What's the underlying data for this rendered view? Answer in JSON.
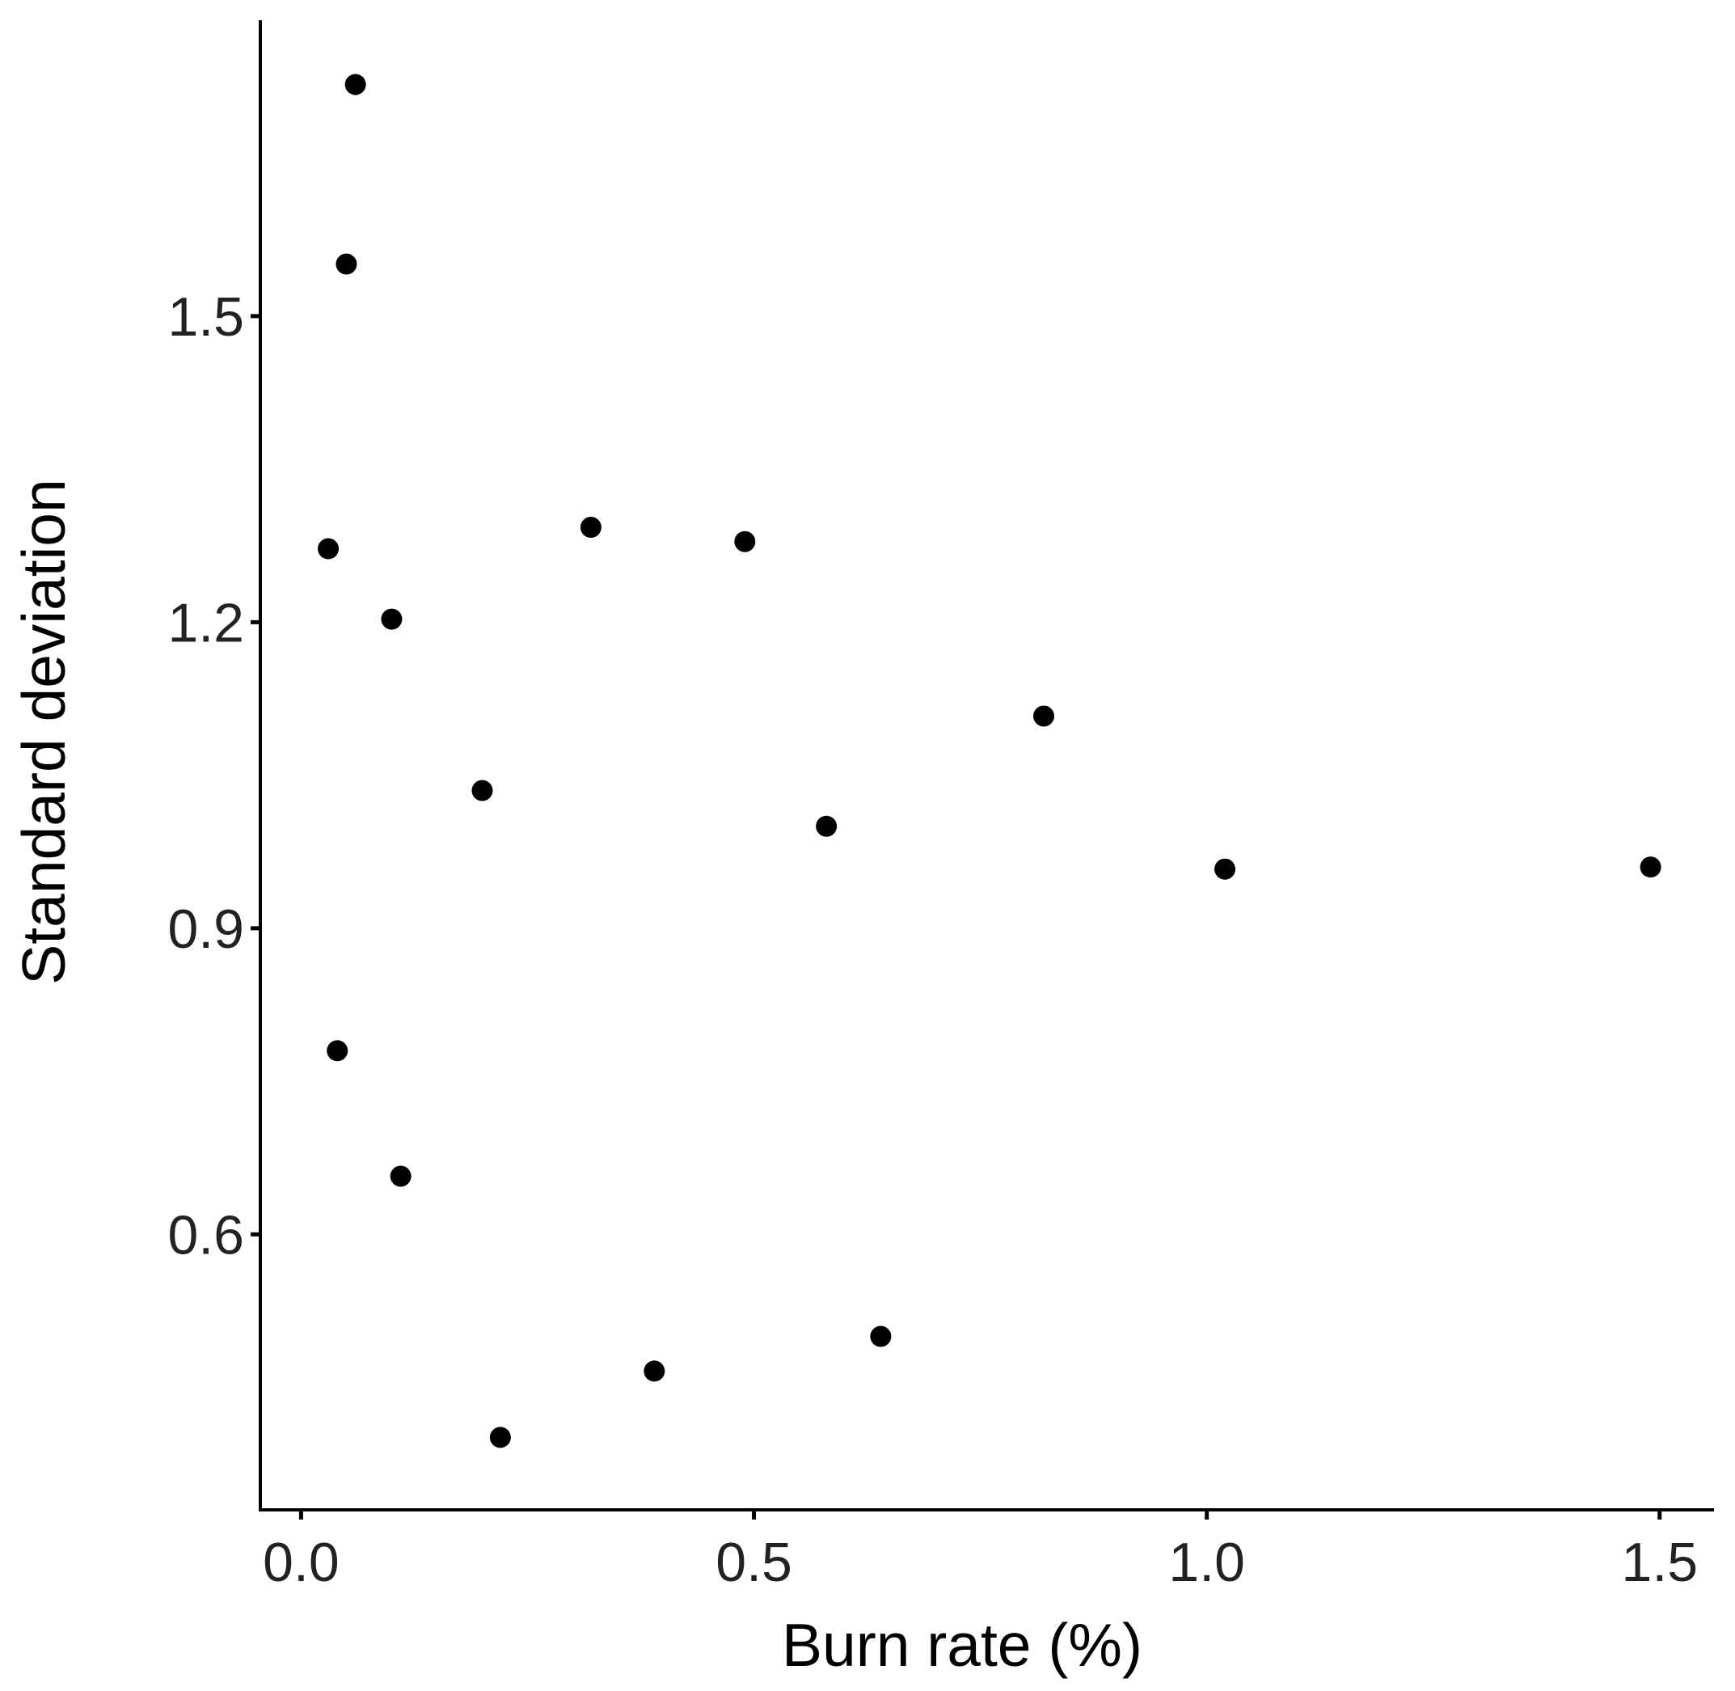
{
  "chart_data": {
    "type": "scatter",
    "xlabel": "Burn rate (%)",
    "ylabel": "Standard deviation",
    "xlim": [
      -0.045,
      1.56
    ],
    "ylim": [
      0.33,
      1.79
    ],
    "xticks": [
      {
        "value": 0.0,
        "label": "0.0"
      },
      {
        "value": 0.5,
        "label": "0.5"
      },
      {
        "value": 1.0,
        "label": "1.0"
      },
      {
        "value": 1.5,
        "label": "1.5"
      }
    ],
    "yticks": [
      {
        "value": 0.6,
        "label": "0.6"
      },
      {
        "value": 0.9,
        "label": "0.9"
      },
      {
        "value": 1.2,
        "label": "1.2"
      },
      {
        "value": 1.5,
        "label": "1.5"
      }
    ],
    "grid": false,
    "point_color": "#000000",
    "points": [
      {
        "x": 0.06,
        "y": 1.727
      },
      {
        "x": 0.05,
        "y": 1.551
      },
      {
        "x": 0.03,
        "y": 1.272
      },
      {
        "x": 0.1,
        "y": 1.203
      },
      {
        "x": 0.32,
        "y": 1.293
      },
      {
        "x": 0.49,
        "y": 1.279
      },
      {
        "x": 0.82,
        "y": 1.108
      },
      {
        "x": 0.2,
        "y": 1.035
      },
      {
        "x": 0.58,
        "y": 1.0
      },
      {
        "x": 1.02,
        "y": 0.958
      },
      {
        "x": 1.49,
        "y": 0.96
      },
      {
        "x": 0.04,
        "y": 0.78
      },
      {
        "x": 0.11,
        "y": 0.657
      },
      {
        "x": 0.64,
        "y": 0.5
      },
      {
        "x": 0.39,
        "y": 0.466
      },
      {
        "x": 0.22,
        "y": 0.401
      }
    ]
  }
}
